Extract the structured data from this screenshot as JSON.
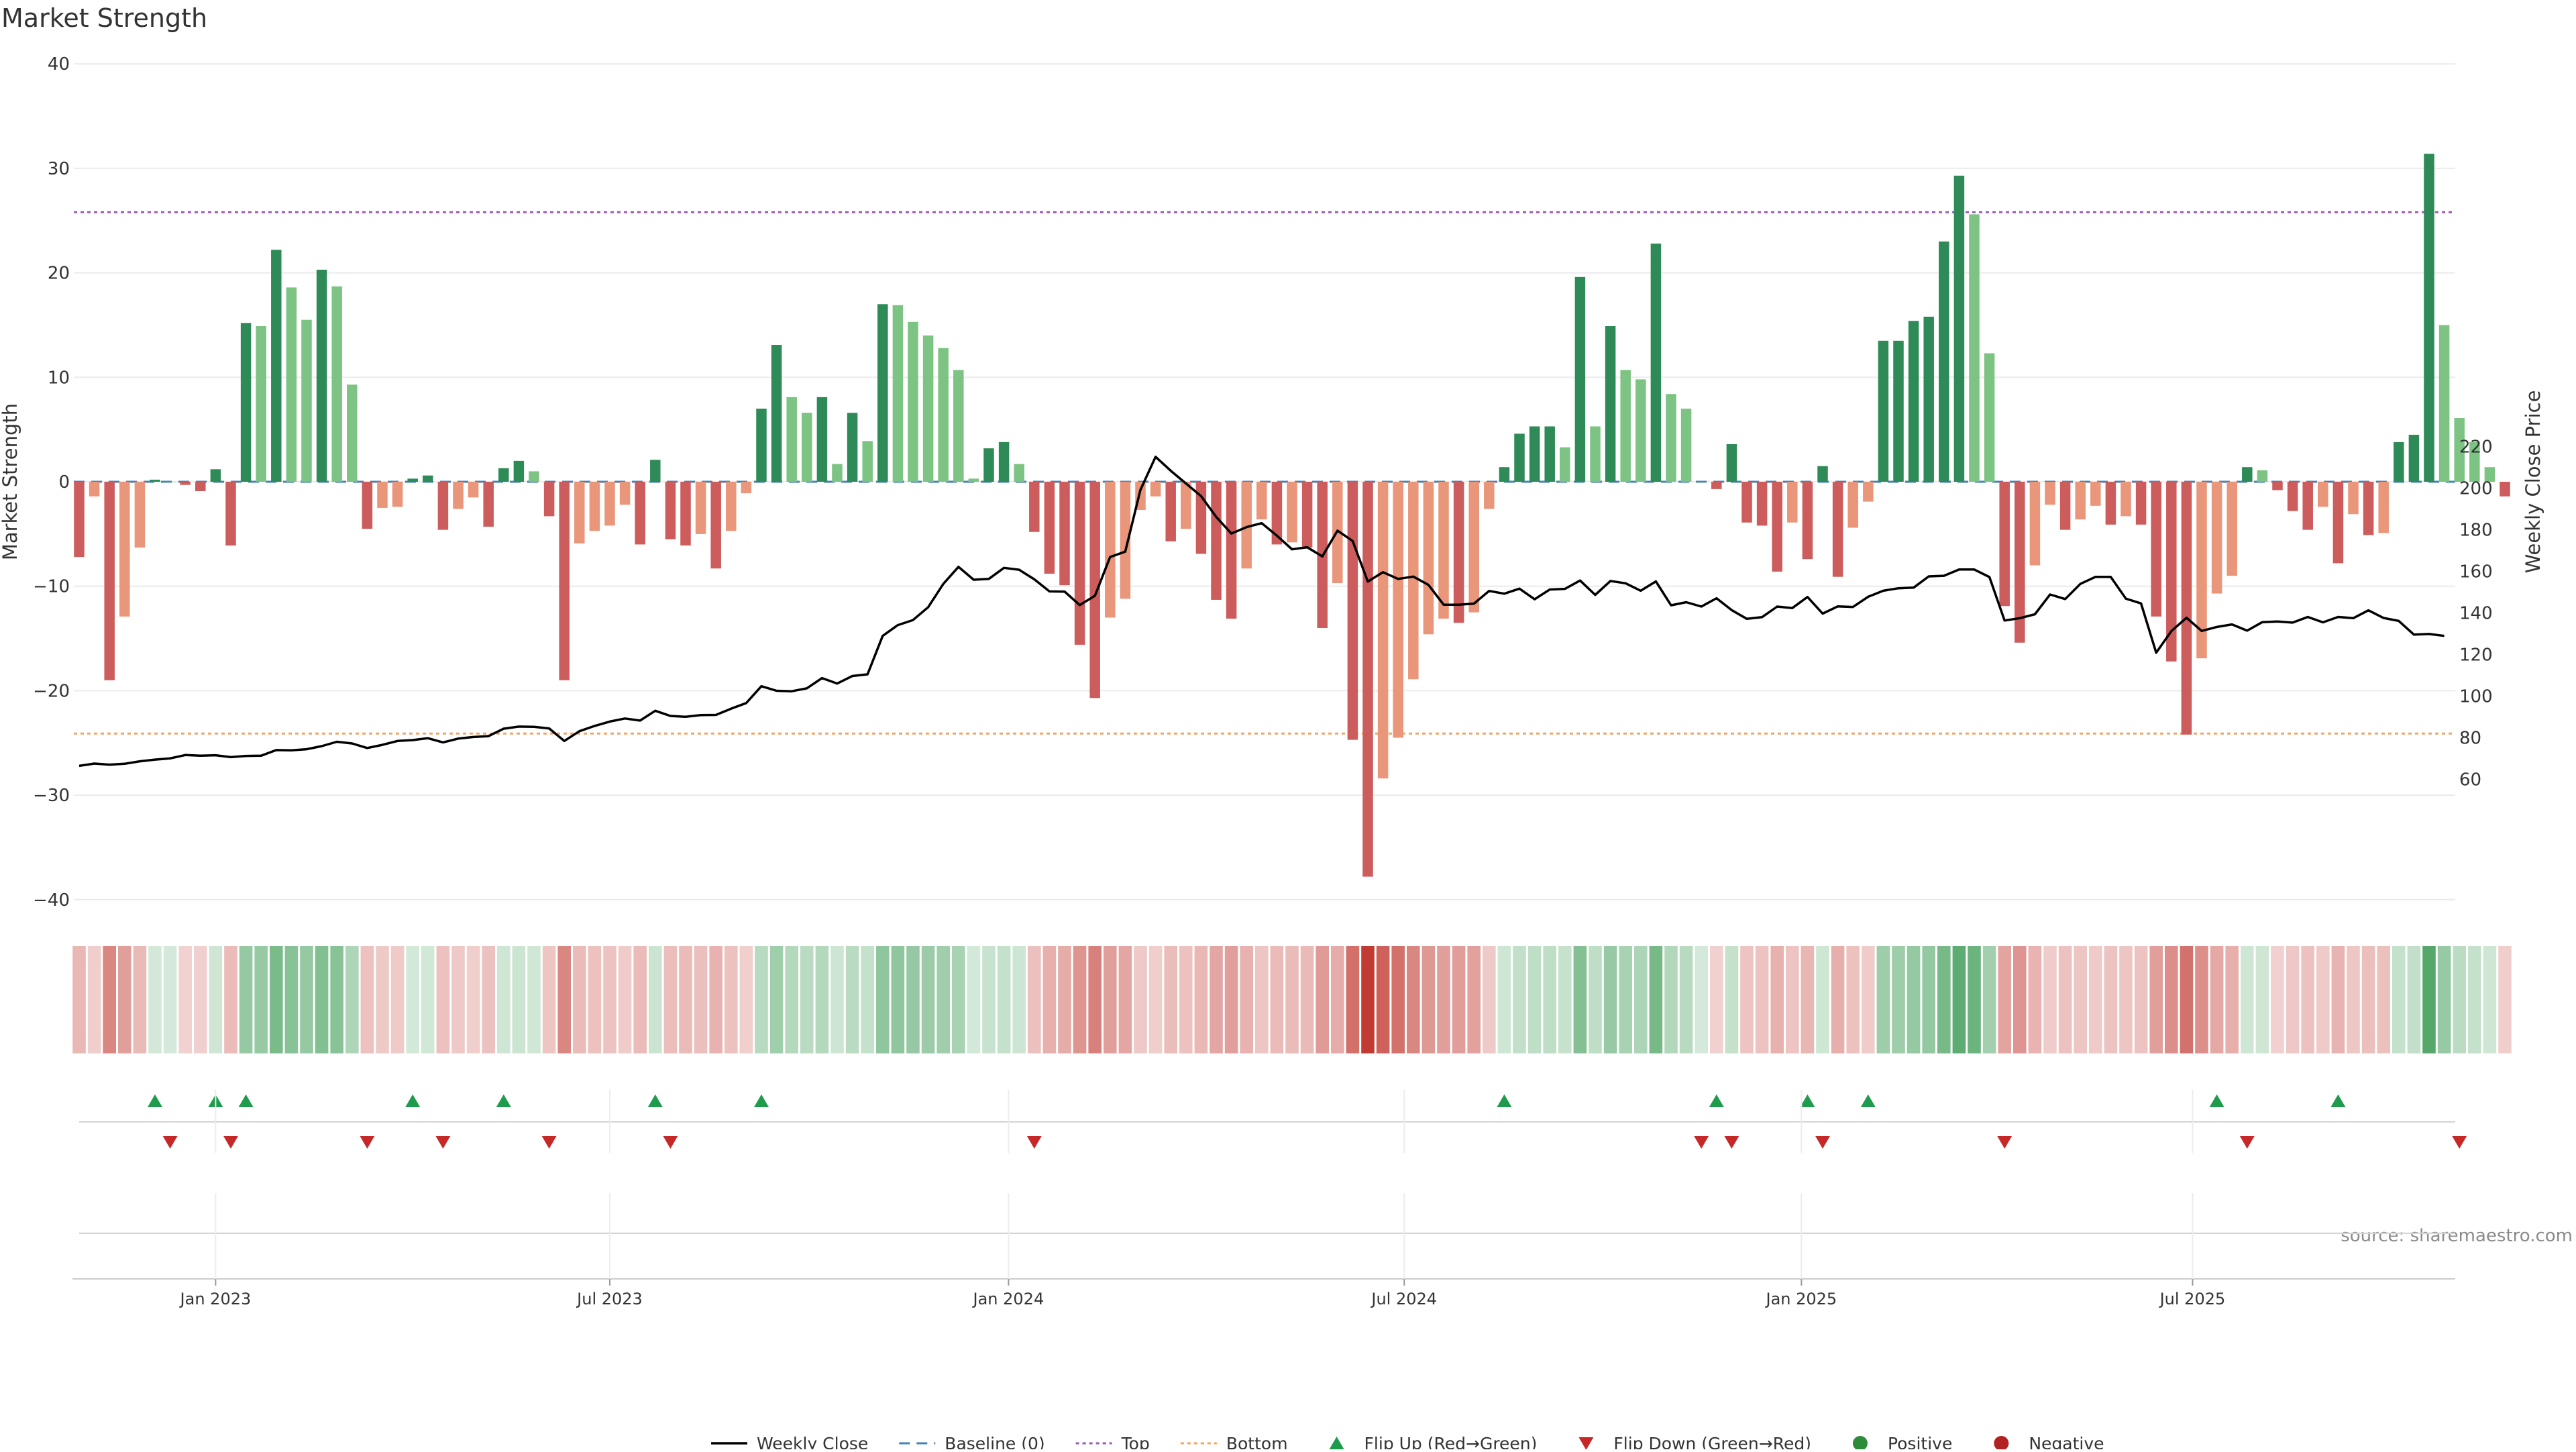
{
  "chart_data": {
    "type": "bar",
    "title": "Market Strength",
    "source_text": "source: sharemaestro.com",
    "y_left": {
      "label": "Market Strength",
      "range": [
        -42,
        42
      ],
      "ticks": [
        -40,
        -30,
        -20,
        -10,
        0,
        10,
        20,
        30,
        40
      ]
    },
    "y_right": {
      "label": "Weekly Close Price",
      "range": [
        57,
        221
      ],
      "ticks": [
        60,
        80,
        100,
        120,
        140,
        160,
        180,
        200,
        220
      ]
    },
    "x_ticks": [
      {
        "label": "Jan 2023",
        "week": 9
      },
      {
        "label": "Jul 2023",
        "week": 35
      },
      {
        "label": "Jan 2024",
        "week": 61.3
      },
      {
        "label": "Jul 2024",
        "week": 87.4
      },
      {
        "label": "Jan 2025",
        "week": 113.6
      },
      {
        "label": "Jul 2025",
        "week": 139.4
      }
    ],
    "reference_lines": {
      "baseline": 0,
      "top": 25.8,
      "bottom": -24.1
    },
    "strength": [
      -7.2,
      -1.4,
      -19.0,
      -12.9,
      -6.3,
      0.2,
      0.0,
      -0.3,
      -0.9,
      1.2,
      -6.1,
      15.2,
      14.9,
      22.2,
      18.6,
      15.5,
      20.3,
      18.7,
      9.3,
      -4.5,
      -2.5,
      -2.4,
      0.3,
      0.6,
      -4.6,
      -2.6,
      -1.5,
      -4.3,
      1.3,
      2.0,
      1.0,
      -3.3,
      -19.0,
      -5.9,
      -4.7,
      -4.2,
      -2.2,
      -6.0,
      2.1,
      -5.5,
      -6.1,
      -5.0,
      -8.3,
      -4.7,
      -1.1,
      7.0,
      13.1,
      8.1,
      6.6,
      8.1,
      1.7,
      6.6,
      3.9,
      17.0,
      16.9,
      15.3,
      14.0,
      12.8,
      10.7,
      0.3,
      3.2,
      3.8,
      1.7,
      -4.8,
      -8.8,
      -9.9,
      -15.6,
      -20.7,
      -13.0,
      -11.2,
      -2.7,
      -1.4,
      -5.7,
      -4.5,
      -6.9,
      -11.3,
      -13.1,
      -8.3,
      -3.6,
      -6.0,
      -5.8,
      -6.3,
      -14.0,
      -9.7,
      -24.7,
      -37.8,
      -28.4,
      -24.5,
      -18.9,
      -14.6,
      -13.1,
      -13.5,
      -12.5,
      -2.6,
      1.4,
      4.6,
      5.3,
      5.3,
      3.3,
      19.6,
      5.3,
      14.9,
      10.7,
      9.8,
      22.8,
      8.4,
      7.0,
      0.0,
      -0.7,
      3.6,
      -3.9,
      -4.2,
      -8.6,
      -3.9,
      -7.4,
      1.5,
      -9.1,
      -4.4,
      -1.9,
      13.5,
      13.5,
      15.4,
      15.8,
      23.0,
      29.3,
      25.6,
      12.3,
      -11.9,
      -15.4,
      -8.0,
      -2.2,
      -4.6,
      -3.6,
      -2.3,
      -4.1,
      -3.3,
      -4.1,
      -12.9,
      -17.2,
      -24.2,
      -16.9,
      -10.7,
      -9.0,
      1.4,
      1.1,
      -0.8,
      -2.8,
      -4.6,
      -2.4,
      -7.8,
      -3.1,
      -5.1,
      -4.9,
      3.8,
      4.5,
      31.4,
      15.0,
      6.1,
      3.8,
      1.4,
      -1.4
    ],
    "strength_colors": {
      "strong_positive": "#2e8b57",
      "positive": "#7dc383",
      "strong_negative": "#cd5c5c",
      "negative": "#e9967a"
    },
    "weekly_close": [
      66.5,
      67.6,
      67.1,
      67.5,
      68.7,
      69.5,
      70.1,
      71.7,
      71.4,
      71.6,
      70.7,
      71.3,
      71.4,
      74.1,
      74.0,
      74.5,
      76.0,
      78.1,
      77.3,
      75.1,
      76.6,
      78.5,
      78.9,
      79.8,
      77.8,
      79.6,
      80.4,
      80.8,
      84.4,
      85.4,
      85.3,
      84.5,
      78.5,
      83.2,
      85.7,
      87.8,
      89.3,
      88.3,
      93.0,
      90.5,
      90.1,
      90.9,
      91.0,
      94.0,
      96.7,
      104.8,
      102.6,
      102.4,
      103.8,
      108.7,
      106.1,
      109.7,
      110.5,
      129.0,
      134.2,
      136.6,
      142.8,
      154.0,
      162.2,
      156.0,
      156.4,
      161.7,
      160.8,
      156.2,
      150.4,
      150.3,
      143.8,
      148.3,
      166.9,
      169.5,
      199.2,
      215.1,
      208.4,
      202.3,
      196.2,
      186.2,
      178.2,
      181.3,
      183.2,
      177.2,
      170.6,
      171.6,
      167.2,
      179.6,
      174.6,
      155.1,
      159.6,
      156.4,
      157.5,
      153.5,
      144.0,
      144.0,
      144.5,
      150.6,
      149.3,
      151.7,
      146.6,
      151.3,
      151.6,
      155.6,
      148.7,
      155.4,
      154.3,
      150.7,
      155.2,
      143.7,
      145.2,
      143.1,
      147.1,
      141.4,
      137.2,
      138.0,
      143.1,
      142.4,
      147.7,
      139.7,
      143.2,
      142.9,
      147.8,
      150.7,
      151.9,
      152.2,
      157.6,
      157.9,
      160.9,
      160.9,
      157.3,
      136.4,
      137.5,
      139.4,
      148.9,
      146.7,
      154.0,
      157.4,
      157.4,
      146.9,
      144.6,
      120.9,
      131.3,
      137.7,
      131.4,
      133.3,
      134.5,
      131.5,
      135.6,
      135.9,
      135.4,
      138.1,
      135.5,
      138.1,
      137.5,
      141.3,
      137.6,
      136.2,
      129.6,
      129.9,
      129.0
    ],
    "heatmap": {
      "description_values": "same as strength",
      "pos_color": "#3a9a52",
      "neg_color": "#c23a32"
    },
    "flip_up_weeks": [
      5,
      9,
      11,
      22,
      28,
      38,
      45,
      94,
      108,
      114,
      118,
      141,
      149
    ],
    "flip_down_weeks": [
      6,
      10,
      19,
      24,
      31,
      39,
      63,
      107,
      109,
      115,
      127,
      143,
      157
    ],
    "flip_colors": {
      "up": "#1e9b4c",
      "down": "#c62828"
    },
    "legend": [
      {
        "label": "Weekly Close",
        "kind": "line",
        "color": "#000000"
      },
      {
        "label": "Baseline (0)",
        "kind": "dash",
        "color": "#4682b4"
      },
      {
        "label": "Top",
        "kind": "dot",
        "color": "#9b59b6"
      },
      {
        "label": "Bottom",
        "kind": "dot",
        "color": "#f4a460"
      },
      {
        "label": "Flip Up (Red→Green)",
        "kind": "tri-up",
        "color": "#1e9b4c"
      },
      {
        "label": "Flip Down (Green→Red)",
        "kind": "tri-down",
        "color": "#c62828"
      },
      {
        "label": "Positive",
        "kind": "circle",
        "color": "#2e8b3a"
      },
      {
        "label": "Negative",
        "kind": "circle",
        "color": "#b22222"
      }
    ]
  }
}
